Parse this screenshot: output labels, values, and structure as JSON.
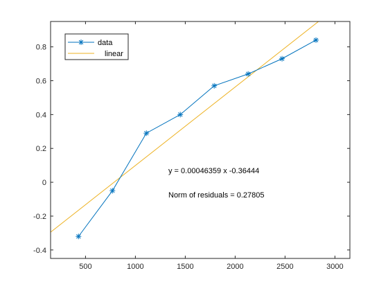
{
  "chart_data": {
    "type": "line",
    "xlim": [
      150,
      3150
    ],
    "ylim": [
      -0.45,
      0.95
    ],
    "xticks": [
      500,
      1000,
      1500,
      2000,
      2500,
      3000
    ],
    "xtick_labels": [
      "500",
      "1000",
      "1500",
      "2000",
      "2500",
      "3000"
    ],
    "yticks": [
      -0.4,
      -0.2,
      0,
      0.2,
      0.4,
      0.6,
      0.8
    ],
    "ytick_labels": [
      "-0.4",
      "-0.2",
      "0",
      "0.2",
      "0.4",
      "0.6",
      "0.8"
    ],
    "grid": false,
    "legend_position": "top-left",
    "series": [
      {
        "name": "data",
        "marker": "asterisk",
        "color": "#0072BD",
        "x": [
          430,
          770,
          1110,
          1450,
          1790,
          2130,
          2470,
          2810
        ],
        "y": [
          -0.32,
          -0.05,
          0.29,
          0.4,
          0.57,
          0.64,
          0.73,
          0.84
        ]
      },
      {
        "name": "linear",
        "color": "#EDB120",
        "fit": {
          "slope": 0.00046359,
          "intercept": -0.36444
        }
      }
    ],
    "annotations": [
      "y = 0.00046359 x -0.36444",
      "Norm of residuals = 0.27805"
    ]
  }
}
